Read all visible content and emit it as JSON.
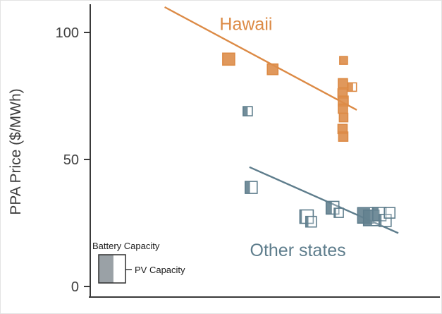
{
  "chart_data": {
    "type": "scatter",
    "title": "",
    "xlabel": "",
    "ylabel": "PPA Price ($/MWh)",
    "ylim": [
      0,
      110
    ],
    "yticks": [
      0,
      50,
      100
    ],
    "xticks": [],
    "x_units_note": "x axis unlabeled in view; x stored as fraction of plot width (0-1)",
    "marker_note": "square width = PV capacity, filled left portion = battery capacity fraction",
    "axis_color": "#3a3a3a",
    "legend": {
      "battery_label": "Battery Capacity",
      "pv_label": "PV Capacity",
      "fill_fraction": 0.55,
      "fill_color": "#9aa1a6"
    },
    "series": [
      {
        "id": "hawaii",
        "name": "Hawaii",
        "color": "#dc8a45",
        "label": {
          "text": "Hawaii",
          "x": 0.45,
          "ppa": 101
        },
        "trend": {
          "x1": 0.215,
          "ppa1": 110,
          "x2": 0.77,
          "ppa2": 69.5
        },
        "points": [
          {
            "x": 0.4,
            "ppa": 89.5,
            "size": 17,
            "fill": 1
          },
          {
            "x": 0.527,
            "ppa": 85.5,
            "size": 15,
            "fill": 1
          },
          {
            "x": 0.732,
            "ppa": 89.0,
            "size": 11,
            "fill": 1
          },
          {
            "x": 0.73,
            "ppa": 80.0,
            "size": 13,
            "fill": 1
          },
          {
            "x": 0.757,
            "ppa": 78.5,
            "size": 12,
            "fill": 0.6
          },
          {
            "x": 0.729,
            "ppa": 76.0,
            "size": 13,
            "fill": 1
          },
          {
            "x": 0.731,
            "ppa": 73.0,
            "size": 14,
            "fill": 1
          },
          {
            "x": 0.73,
            "ppa": 70.0,
            "size": 13,
            "fill": 1
          },
          {
            "x": 0.732,
            "ppa": 66.5,
            "size": 12,
            "fill": 1
          },
          {
            "x": 0.729,
            "ppa": 62.0,
            "size": 13,
            "fill": 1
          },
          {
            "x": 0.731,
            "ppa": 59.0,
            "size": 13,
            "fill": 1
          }
        ]
      },
      {
        "id": "other-states",
        "name": "Other states",
        "color": "#5e7d8c",
        "label": {
          "text": "Other states",
          "x": 0.6,
          "ppa": 12
        },
        "trend": {
          "x1": 0.46,
          "ppa1": 47,
          "x2": 0.89,
          "ppa2": 21
        },
        "points": [
          {
            "x": 0.455,
            "ppa": 69.0,
            "size": 13,
            "fill": 0.5
          },
          {
            "x": 0.465,
            "ppa": 39.0,
            "size": 17,
            "fill": 0.4
          },
          {
            "x": 0.625,
            "ppa": 27.5,
            "size": 19,
            "fill": 0.15
          },
          {
            "x": 0.638,
            "ppa": 25.5,
            "size": 15,
            "fill": 0.25
          },
          {
            "x": 0.7,
            "ppa": 31.0,
            "size": 18,
            "fill": 0.45
          },
          {
            "x": 0.718,
            "ppa": 29.0,
            "size": 13,
            "fill": 0.2
          },
          {
            "x": 0.795,
            "ppa": 28.0,
            "size": 22,
            "fill": 0.8
          },
          {
            "x": 0.812,
            "ppa": 27.0,
            "size": 22,
            "fill": 0.55
          },
          {
            "x": 0.835,
            "ppa": 28.5,
            "size": 19,
            "fill": 0.45
          },
          {
            "x": 0.852,
            "ppa": 26.0,
            "size": 17,
            "fill": 0.2
          },
          {
            "x": 0.865,
            "ppa": 29.0,
            "size": 15,
            "fill": 0
          }
        ]
      }
    ]
  }
}
